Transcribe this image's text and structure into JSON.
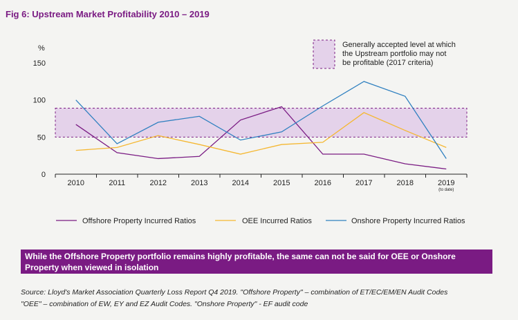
{
  "figure": {
    "title": "Fig 6: Upstream Market Profitability 2010 – 2019"
  },
  "colors": {
    "offshore": "#7a1b83",
    "oee": "#f5b730",
    "onshore": "#2f80c0",
    "band_fill": "#e4d2ea",
    "band_border": "#7a1b83",
    "callout_bg": "#7a1b83"
  },
  "chart_data": {
    "type": "line",
    "title": "",
    "xlabel": "",
    "ylabel": "%",
    "ylim": [
      0,
      150
    ],
    "y_ticks": [
      "0",
      "50",
      "100",
      "150"
    ],
    "categories": [
      "2010",
      "2011",
      "2012",
      "2013",
      "2014",
      "2015",
      "2016",
      "2017",
      "2018",
      "2019"
    ],
    "category_note": "(to date)",
    "series": [
      {
        "name": "Offshore Property Incurred Ratios",
        "color_key": "offshore",
        "values": [
          67,
          29,
          21,
          24,
          73,
          91,
          27,
          27,
          14,
          7
        ]
      },
      {
        "name": "OEE Incurred Ratios",
        "color_key": "oee",
        "values": [
          32,
          36,
          52,
          40,
          27,
          40,
          43,
          83,
          59,
          36
        ]
      },
      {
        "name": "Onshore Property Incurred Ratios",
        "color_key": "onshore",
        "values": [
          100,
          41,
          70,
          78,
          46,
          57,
          92,
          125,
          105,
          21
        ]
      }
    ],
    "band": {
      "from": 50,
      "to": 89,
      "label_lines": [
        "Generally accepted level at which",
        "the Upstream portfolio may not",
        "be profitable (2017 criteria)"
      ]
    },
    "legend": {
      "placement": "bottom"
    }
  },
  "callout": {
    "text": "While the Offshore Property portfolio remains highly profitable, the same can not be said for OEE or Onshore Property when viewed in isolation"
  },
  "source": {
    "line1": "Source:  Lloyd's Market Association Quarterly Loss Report Q4 2019. \"Offshore Property\" – combination of ET/EC/EM/EN Audit Codes",
    "line2": "\"OEE\" – combination of EW, EY and EZ Audit Codes. \"Onshore Property\" - EF audit code"
  }
}
